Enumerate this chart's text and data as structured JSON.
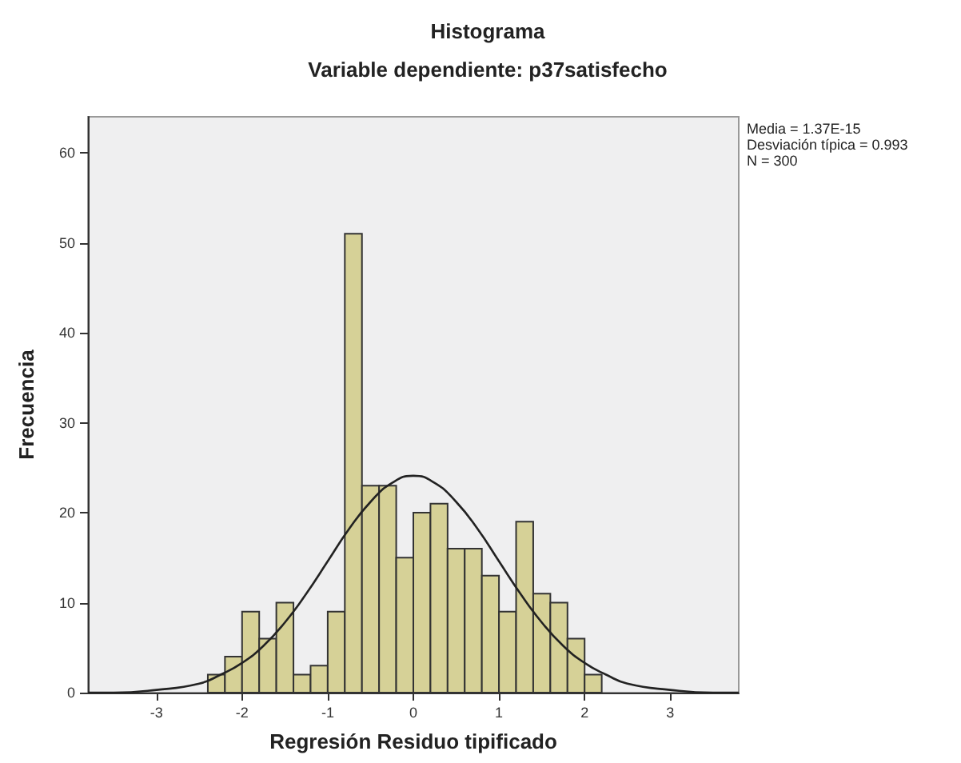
{
  "chart_data": {
    "type": "histogram",
    "title": "Histograma",
    "subtitle": "Variable dependiente: p37satisfecho",
    "xlabel": "Regresión Residuo tipificado",
    "ylabel": "Frecuencia",
    "bins": [
      -2.4,
      -2.2,
      -2.0,
      -1.8,
      -1.6,
      -1.4,
      -1.2,
      -1.0,
      -0.8,
      -0.6,
      -0.4,
      -0.2,
      0.0,
      0.2,
      0.4,
      0.6,
      0.8,
      1.0,
      1.2,
      1.4,
      1.6,
      1.8,
      2.0,
      2.2
    ],
    "values": [
      2,
      4,
      9,
      6,
      10,
      2,
      3,
      9,
      51,
      23,
      23,
      15,
      20,
      21,
      16,
      16,
      13,
      9,
      19,
      11,
      10,
      6,
      2
    ],
    "color": "#d6d197",
    "series": [
      {
        "type": "line",
        "color": "#222222",
        "x": [
          -3.8,
          -3.5,
          -3,
          -2.5,
          -2.25,
          -2,
          -1.75,
          -1.5,
          -1.25,
          -1,
          -0.75,
          -0.5,
          -0.25,
          0,
          0.25,
          0.5,
          0.75,
          1,
          1.25,
          1.5,
          1.75,
          2,
          2.25,
          2.5,
          3,
          3.5,
          3.8
        ],
        "values": [
          0,
          0,
          0.3,
          1,
          2,
          3.3,
          5.2,
          7.8,
          11,
          14.6,
          18.2,
          21.2,
          23.3,
          24.1,
          23.3,
          21.2,
          18.2,
          14.6,
          11,
          7.8,
          5.2,
          3.3,
          2,
          1,
          0.3,
          0,
          0
        ]
      }
    ],
    "xlim": [
      -3.8,
      3.8
    ],
    "ylim": [
      0,
      64
    ],
    "xticks": [
      -3,
      -2,
      -1,
      0,
      1,
      2,
      3
    ],
    "yticks": [
      0,
      10,
      20,
      30,
      40,
      50,
      60
    ],
    "annotations": [
      "Media = 1.37E-15",
      "Desviación típica = 0.993",
      "N = 300"
    ],
    "grid": false,
    "legend": false,
    "marker": "none"
  }
}
